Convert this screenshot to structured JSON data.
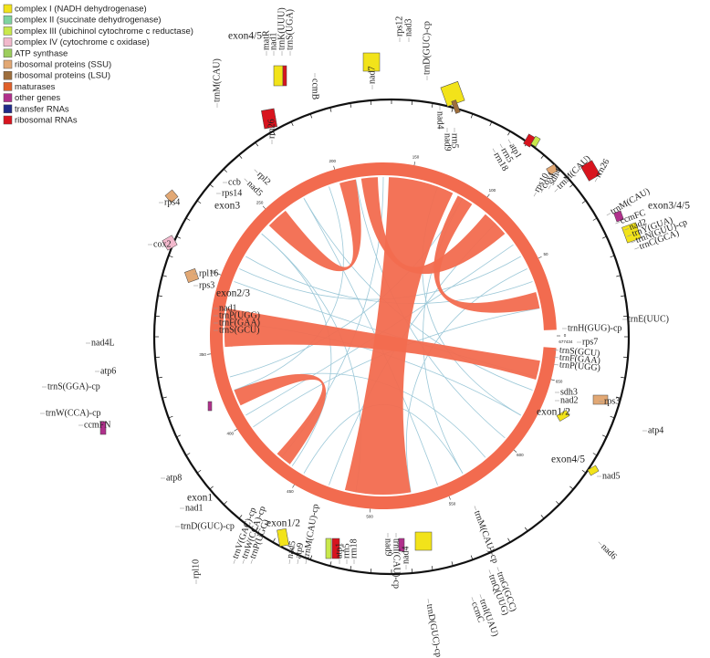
{
  "legend": {
    "items": [
      {
        "label": "complex I (NADH dehydrogenase)",
        "color": "#f2e31a"
      },
      {
        "label": "complex II (succinate dehydrogenase)",
        "color": "#7fd3a0"
      },
      {
        "label": "complex III (ubichinol cytochrome c reductase)",
        "color": "#c9e84c"
      },
      {
        "label": "complex IV (cytochrome c oxidase)",
        "color": "#f2b8cc"
      },
      {
        "label": "ATP synthase",
        "color": "#9ccd5c"
      },
      {
        "label": "ribosomal proteins (SSU)",
        "color": "#e2a874"
      },
      {
        "label": "ribosomal proteins (LSU)",
        "color": "#9e6e3c"
      },
      {
        "label": "maturases",
        "color": "#e0602a"
      },
      {
        "label": "other genes",
        "color": "#b0308c"
      },
      {
        "label": "transfer RNAs",
        "color": "#1f2a88"
      },
      {
        "label": "ribosomal RNAs",
        "color": "#d8141e"
      }
    ]
  },
  "gene_labels": [
    "nad7",
    "rps12",
    "nad3",
    "trnD(GUC)-cp",
    "matR",
    "nad1",
    "trnK(UUU)",
    "trnS(UGA)",
    "trnM(CAU)",
    "ccmB",
    "rrn26",
    "nad4",
    "nad9",
    "rrn5",
    "rrn18",
    "rrn5",
    "atp1",
    "rps10",
    "cox1",
    "sdh4",
    "trnM(CAU)",
    "rrn26",
    "trnM(CAU)",
    "ccmFC",
    "nad2",
    "trnY(GUA)",
    "trnN(GUU)-cp",
    "trnC(GCA)",
    "trnE(UUC)",
    "trnH(GUG)-cp",
    "rps7",
    "trnS(GCU)",
    "trnF(GAA)",
    "trnP(UGG)",
    "rps3",
    "atp4",
    "sdh3",
    "nad2",
    "nad5",
    "nad6",
    "trnM(CAU)-cp",
    "trnQ(UUG)",
    "trnG(GCC)",
    "ccmC",
    "trnI(UAU)",
    "trnD(GUC)-cp",
    "nad4",
    "nad9",
    "trnI(CAU)-cp",
    "atp1",
    "rrn5",
    "rrn18",
    "nad5",
    "atp9",
    "trnM(CAU)-cp",
    "trnW(CCA)-cp",
    "trnP(UGG)",
    "trnV(GAC)-cp",
    "rpl10",
    "atp8",
    "nad1",
    "trnD(GUC)-cp",
    "ccmFN",
    "trnW(CCA)-cp",
    "atp6",
    "trnS(GGA)-cp",
    "nad4L",
    "nad1",
    "trnP(UGG)",
    "trnF(GAA)",
    "trnS(GCU)",
    "rpl16",
    "rps3",
    "cox2",
    "rps4",
    "rpl2",
    "nad5",
    "rps14",
    "ccb"
  ],
  "exon_labels": [
    "exon4/5",
    "exon3",
    "exon3/4/5",
    "exon2/3",
    "exon1/2",
    "exon4/5",
    "exon1",
    "exon1/2"
  ],
  "ring_ticks": [
    0,
    50,
    100,
    150,
    200,
    250,
    300,
    350,
    400,
    450,
    500,
    550,
    600,
    650
  ],
  "ring_total": 677434
}
